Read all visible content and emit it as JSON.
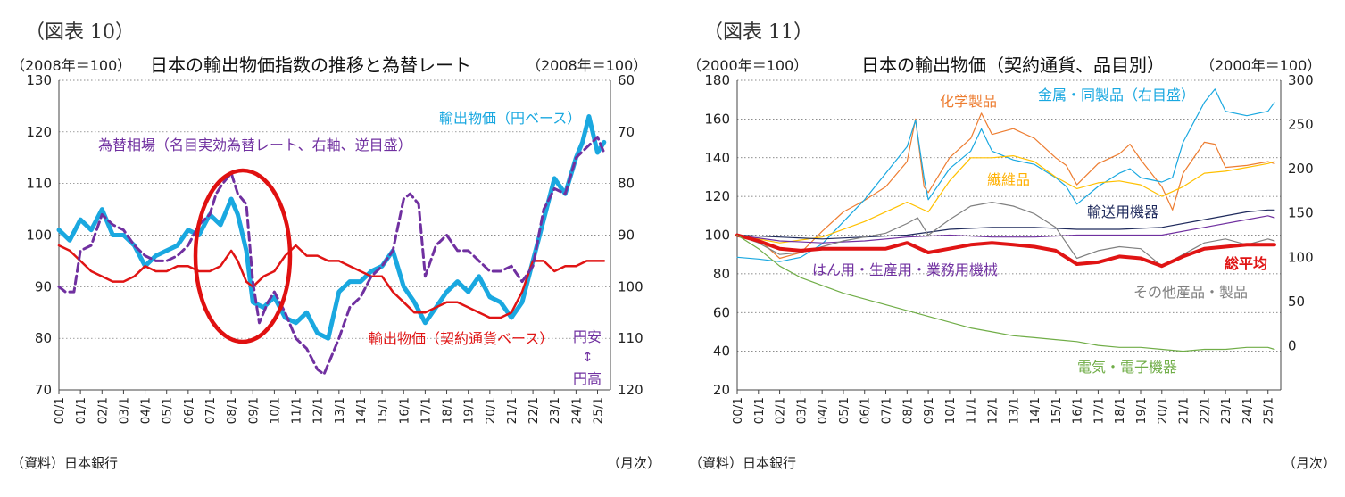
{
  "figures": [
    {
      "fig_label": "（図表 10）",
      "left_unit": "（2008年＝100）",
      "title": "日本の輸出物価指数の推移と為替レート",
      "right_unit": "（2008年＝100）",
      "source": "（資料）日本銀行",
      "freq": "（月次）"
    },
    {
      "fig_label": "（図表 11）",
      "left_unit": "（2000年＝100）",
      "title": "日本の輸出物価（契約通貨、品目別）",
      "right_unit": "（2000年＝100）",
      "source": "（資料）日本銀行",
      "freq": "（月次）"
    }
  ],
  "chart_data": [
    {
      "type": "line",
      "title": "日本の輸出物価指数の推移と為替レート",
      "ylim": [
        70,
        130
      ],
      "yticks": [
        70,
        80,
        90,
        100,
        110,
        120,
        130
      ],
      "y2lim": [
        60,
        120
      ],
      "y2_inverted": true,
      "y2ticks": [
        60,
        70,
        80,
        90,
        100,
        110,
        120
      ],
      "categories": [
        "00/1",
        "01/1",
        "02/1",
        "03/1",
        "04/1",
        "05/1",
        "06/1",
        "07/1",
        "08/1",
        "09/1",
        "10/1",
        "11/1",
        "12/1",
        "13/1",
        "14/1",
        "15/1",
        "16/1",
        "17/1",
        "18/1",
        "19/1",
        "20/1",
        "21/1",
        "22/1",
        "23/1",
        "24/1",
        "25/1"
      ],
      "series": [
        {
          "name": "輸出物価（円ベース）",
          "axis": "left",
          "color": "#1aa8e0",
          "style": "solid",
          "width": 5,
          "x": [
            2000,
            2000.5,
            2001,
            2001.5,
            2002,
            2002.5,
            2003,
            2003.5,
            2004,
            2004.5,
            2005,
            2005.5,
            2006,
            2006.5,
            2007,
            2007.5,
            2008,
            2008.3,
            2008.7,
            2009,
            2009.5,
            2010,
            2010.5,
            2011,
            2011.5,
            2012,
            2012.5,
            2013,
            2013.5,
            2014,
            2014.5,
            2015,
            2015.5,
            2016,
            2016.5,
            2017,
            2017.5,
            2018,
            2018.5,
            2019,
            2019.5,
            2020,
            2020.5,
            2021,
            2021.5,
            2022,
            2022.5,
            2023,
            2023.5,
            2024,
            2024.3,
            2024.6,
            2025,
            2025.3
          ],
          "y": [
            101,
            99,
            103,
            101,
            105,
            100,
            100,
            98,
            94,
            96,
            97,
            98,
            101,
            100,
            104,
            102,
            107,
            104,
            97,
            87,
            86,
            88,
            84,
            83,
            85,
            81,
            80,
            89,
            91,
            91,
            93,
            94,
            97,
            90,
            87,
            83,
            86,
            89,
            91,
            89,
            92,
            88,
            87,
            84,
            87,
            95,
            103,
            111,
            108,
            115,
            118,
            123,
            116,
            118
          ]
        },
        {
          "name": "輸出物価（契約通貨ベース）",
          "axis": "left",
          "color": "#e01414",
          "style": "solid",
          "width": 2.5,
          "x": [
            2000,
            2000.5,
            2001,
            2001.5,
            2002,
            2002.5,
            2003,
            2003.5,
            2004,
            2004.5,
            2005,
            2005.5,
            2006,
            2006.5,
            2007,
            2007.5,
            2008,
            2008.3,
            2008.7,
            2009,
            2009.5,
            2010,
            2010.5,
            2011,
            2011.5,
            2012,
            2012.5,
            2013,
            2013.5,
            2014,
            2014.5,
            2015,
            2015.5,
            2016,
            2016.5,
            2017,
            2017.5,
            2018,
            2018.5,
            2019,
            2019.5,
            2020,
            2020.5,
            2021,
            2021.5,
            2022,
            2022.5,
            2023,
            2023.5,
            2024,
            2024.5,
            2025,
            2025.3
          ],
          "y": [
            98,
            97,
            95,
            93,
            92,
            91,
            91,
            92,
            94,
            93,
            93,
            94,
            94,
            93,
            93,
            94,
            97,
            95,
            91,
            90,
            92,
            93,
            96,
            98,
            96,
            96,
            95,
            95,
            94,
            93,
            92,
            92,
            89,
            87,
            85,
            85,
            86,
            87,
            87,
            86,
            85,
            84,
            84,
            85,
            89,
            95,
            95,
            93,
            94,
            94,
            95,
            95,
            95
          ]
        },
        {
          "name": "為替相場（名目実効為替レート、右軸、逆目盛）",
          "axis": "right",
          "color": "#7030a0",
          "style": "dashed",
          "width": 3,
          "x": [
            2000,
            2000.3,
            2000.7,
            2001,
            2001.5,
            2002,
            2002.5,
            2003,
            2003.5,
            2004,
            2004.5,
            2005,
            2005.5,
            2006,
            2006.5,
            2007,
            2007.3,
            2007.6,
            2008,
            2008.3,
            2008.7,
            2009,
            2009.3,
            2009.7,
            2010,
            2010.5,
            2011,
            2011.5,
            2012,
            2012.3,
            2012.7,
            2013,
            2013.5,
            2014,
            2014.5,
            2015,
            2015.5,
            2016,
            2016.3,
            2016.7,
            2017,
            2017.5,
            2018,
            2018.5,
            2019,
            2019.5,
            2020,
            2020.5,
            2021,
            2021.5,
            2022,
            2022.5,
            2023,
            2023.5,
            2024,
            2024.5,
            2025,
            2025.3
          ],
          "y": [
            100,
            101,
            101,
            93,
            92,
            86,
            88,
            89,
            92,
            94,
            95,
            95,
            94,
            92,
            88,
            86,
            82,
            80,
            78,
            82,
            84,
            99,
            107,
            103,
            101,
            105,
            110,
            112,
            116,
            117,
            113,
            110,
            104,
            102,
            98,
            96,
            93,
            83,
            82,
            84,
            98,
            92,
            90,
            93,
            93,
            95,
            97,
            97,
            96,
            99,
            96,
            85,
            81,
            82,
            75,
            73,
            71,
            74
          ]
        }
      ],
      "annotations": [
        "輸出物価（円ベース）",
        "為替相場（名目実効為替レート、右軸、逆目盛）",
        "輸出物価（契約通貨ベース）",
        "円安",
        "↕",
        "円高"
      ]
    },
    {
      "type": "line",
      "title": "日本の輸出物価（契約通貨、品目別）",
      "ylim": [
        20,
        180
      ],
      "yticks": [
        20,
        40,
        60,
        80,
        100,
        120,
        140,
        160,
        180
      ],
      "y2lim": [
        -50,
        300
      ],
      "y2ticks": [
        0,
        50,
        100,
        150,
        200,
        250,
        300
      ],
      "categories": [
        "00/1",
        "01/1",
        "02/1",
        "03/1",
        "04/1",
        "05/1",
        "06/1",
        "07/1",
        "08/1",
        "09/1",
        "10/1",
        "11/1",
        "12/1",
        "13/1",
        "14/1",
        "15/1",
        "16/1",
        "17/1",
        "18/1",
        "19/1",
        "20/1",
        "21/1",
        "22/1",
        "23/1",
        "24/1",
        "25/1"
      ],
      "series": [
        {
          "name": "化学製品",
          "axis": "left",
          "color": "#ed7d31",
          "width": 1.2,
          "x": [
            2000,
            2001,
            2002,
            2003,
            2004,
            2005,
            2006,
            2007,
            2008,
            2008.4,
            2008.8,
            2009,
            2010,
            2011,
            2011.5,
            2012,
            2013,
            2014,
            2015,
            2015.5,
            2016,
            2017,
            2018,
            2018.5,
            2019,
            2020,
            2020.5,
            2021,
            2022,
            2022.5,
            2023,
            2024,
            2025,
            2025.3
          ],
          "y": [
            100,
            98,
            88,
            91,
            102,
            112,
            118,
            125,
            138,
            160,
            125,
            122,
            140,
            150,
            163,
            152,
            155,
            150,
            140,
            136,
            126,
            137,
            142,
            147,
            139,
            125,
            113,
            132,
            148,
            147,
            135,
            136,
            138,
            137
          ]
        },
        {
          "name": "金属・同製品（右目盛）",
          "axis": "right",
          "color": "#1aa8e0",
          "width": 1.2,
          "x": [
            2000,
            2001,
            2002,
            2003,
            2004,
            2005,
            2006,
            2007,
            2008,
            2008.4,
            2008.8,
            2009,
            2010,
            2011,
            2011.5,
            2012,
            2013,
            2014,
            2015,
            2015.5,
            2016,
            2017,
            2018,
            2018.5,
            2019,
            2020,
            2020.5,
            2021,
            2022,
            2022.5,
            2023,
            2024,
            2025,
            2025.3
          ],
          "y": [
            100,
            98,
            95,
            100,
            115,
            140,
            165,
            195,
            225,
            255,
            190,
            165,
            200,
            220,
            245,
            220,
            210,
            205,
            190,
            180,
            160,
            180,
            195,
            200,
            190,
            185,
            190,
            230,
            275,
            290,
            265,
            260,
            265,
            275
          ]
        },
        {
          "name": "繊維品",
          "axis": "left",
          "color": "#ffc000",
          "width": 1.2,
          "x": [
            2000,
            2002,
            2004,
            2006,
            2008,
            2009,
            2010,
            2011,
            2012,
            2013,
            2014,
            2015,
            2016,
            2017,
            2018,
            2019,
            2020,
            2021,
            2022,
            2023,
            2024,
            2025,
            2025.3
          ],
          "y": [
            100,
            96,
            99,
            107,
            117,
            112,
            128,
            140,
            140,
            141,
            138,
            130,
            124,
            127,
            128,
            126,
            120,
            125,
            132,
            133,
            135,
            137,
            138
          ]
        },
        {
          "name": "輸送用機器",
          "axis": "left",
          "color": "#1f2a5c",
          "width": 1.2,
          "x": [
            2000,
            2002,
            2004,
            2006,
            2008,
            2010,
            2012,
            2014,
            2016,
            2018,
            2020,
            2022,
            2024,
            2025,
            2025.3
          ],
          "y": [
            100,
            99,
            98,
            99,
            100,
            103,
            104,
            104,
            103,
            103,
            104,
            108,
            112,
            113,
            113
          ]
        },
        {
          "name": "はん用・生産用・業務用機械",
          "axis": "left",
          "color": "#7030a0",
          "width": 1.2,
          "x": [
            2000,
            2002,
            2004,
            2006,
            2008,
            2010,
            2012,
            2014,
            2016,
            2018,
            2020,
            2022,
            2024,
            2025,
            2025.3
          ],
          "y": [
            100,
            97,
            96,
            97,
            99,
            100,
            99,
            99,
            100,
            100,
            100,
            104,
            108,
            110,
            109
          ]
        },
        {
          "name": "その他産品・製品",
          "axis": "left",
          "color": "#808080",
          "width": 1.2,
          "x": [
            2000,
            2001,
            2002,
            2003,
            2004,
            2005,
            2006,
            2007,
            2008,
            2008.5,
            2009,
            2010,
            2011,
            2012,
            2013,
            2014,
            2015,
            2016,
            2017,
            2018,
            2019,
            2020,
            2021,
            2022,
            2023,
            2024,
            2025,
            2025.3
          ],
          "y": [
            100,
            96,
            90,
            91,
            94,
            97,
            99,
            101,
            106,
            109,
            100,
            108,
            115,
            117,
            115,
            111,
            104,
            88,
            92,
            94,
            93,
            84,
            90,
            96,
            98,
            95,
            98,
            97
          ]
        },
        {
          "name": "総平均",
          "axis": "left",
          "color": "#e01414",
          "width": 4,
          "x": [
            2000,
            2001,
            2002,
            2003,
            2004,
            2005,
            2006,
            2007,
            2008,
            2009,
            2010,
            2011,
            2012,
            2013,
            2014,
            2015,
            2016,
            2017,
            2018,
            2019,
            2020,
            2021,
            2022,
            2023,
            2024,
            2025,
            2025.3
          ],
          "y": [
            100,
            97,
            93,
            92,
            93,
            93,
            93,
            93,
            96,
            91,
            93,
            95,
            96,
            95,
            94,
            92,
            85,
            86,
            89,
            88,
            84,
            89,
            93,
            94,
            95,
            95,
            95
          ]
        },
        {
          "name": "電気・電子機器",
          "axis": "left",
          "color": "#70ad47",
          "width": 1.2,
          "x": [
            2000,
            2001,
            2002,
            2003,
            2004,
            2005,
            2006,
            2007,
            2008,
            2009,
            2010,
            2011,
            2012,
            2013,
            2014,
            2015,
            2016,
            2017,
            2018,
            2019,
            2020,
            2021,
            2022,
            2023,
            2024,
            2025,
            2025.3
          ],
          "y": [
            100,
            93,
            84,
            78,
            74,
            70,
            67,
            64,
            61,
            58,
            55,
            52,
            50,
            48,
            47,
            46,
            45,
            43,
            42,
            42,
            41,
            40,
            41,
            41,
            42,
            42,
            41
          ]
        }
      ],
      "annotations": [
        "化学製品",
        "金属・同製品（右目盛）",
        "繊維品",
        "輸送用機器",
        "はん用・生産用・業務用機械",
        "総平均",
        "その他産品・製品",
        "電気・電子機器"
      ]
    }
  ]
}
